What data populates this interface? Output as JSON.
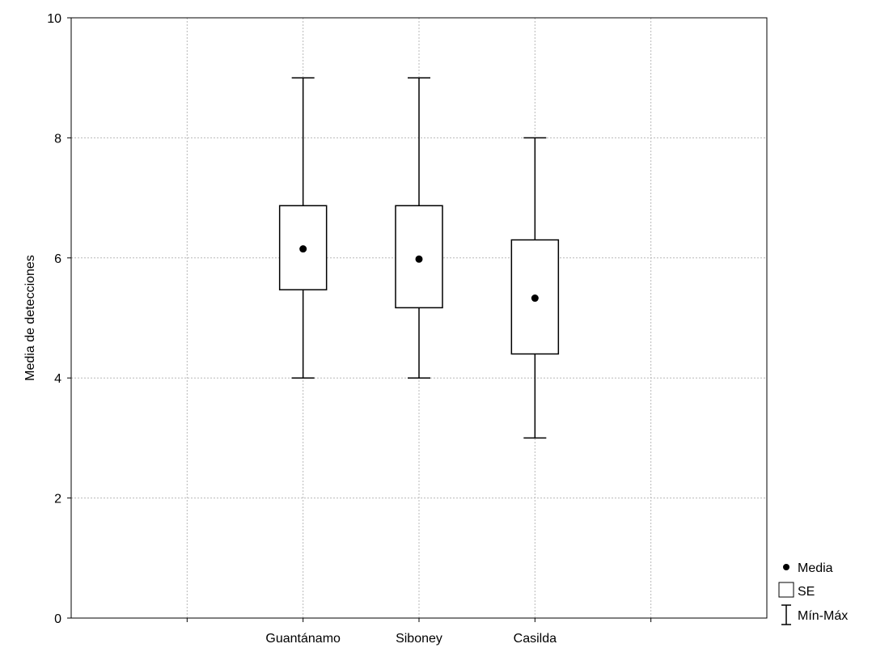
{
  "chart_data": {
    "type": "boxplot",
    "categories": [
      "Guantánamo",
      "Siboney",
      "Casilda"
    ],
    "ylabel": "Media de detecciones",
    "xlabel": "",
    "ylim": [
      0,
      10
    ],
    "yticks": [
      "0",
      "2",
      "4",
      "6",
      "8",
      "10"
    ],
    "grid": true,
    "legend_position": "bottom-right",
    "legend": {
      "mean": "Media",
      "box": "SE",
      "whisker": "Mín-Máx"
    },
    "boxes": [
      {
        "category": "Guantánamo",
        "mean": 6.15,
        "se_low": 5.47,
        "se_high": 6.87,
        "min": 4,
        "max": 9
      },
      {
        "category": "Siboney",
        "mean": 5.98,
        "se_low": 5.17,
        "se_high": 6.87,
        "min": 4,
        "max": 9
      },
      {
        "category": "Casilda",
        "mean": 5.33,
        "se_low": 4.4,
        "se_high": 6.3,
        "min": 3,
        "max": 8
      }
    ],
    "colors": {
      "stroke": "#000000",
      "grid": "#b8b8b8",
      "background": "#ffffff"
    }
  }
}
